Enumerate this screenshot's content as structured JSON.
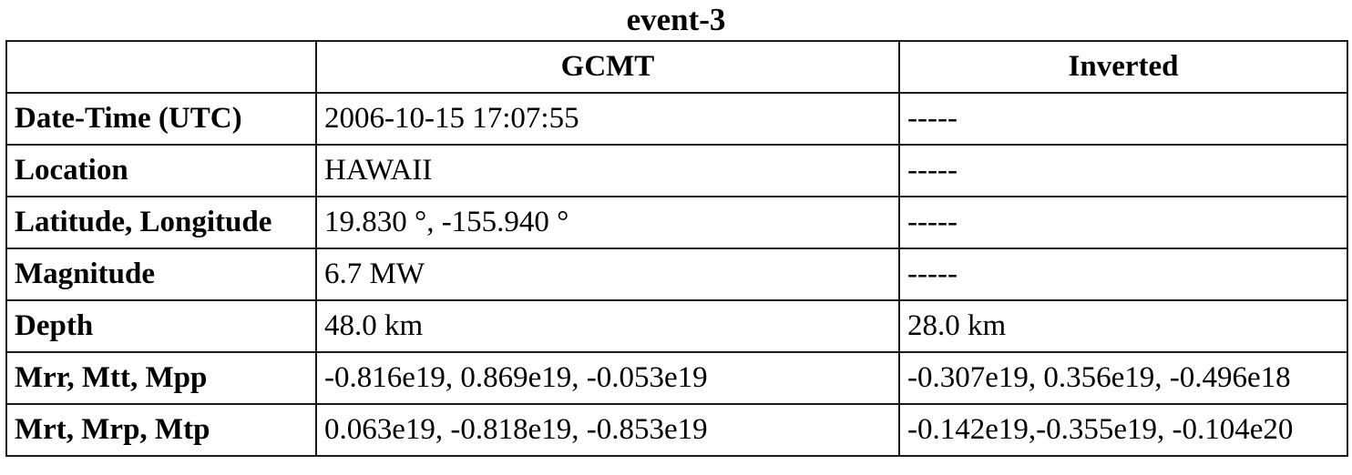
{
  "title": "event-3",
  "table": {
    "header": {
      "corner": "",
      "gcmt": "GCMT",
      "inverted": "Inverted"
    },
    "rows": [
      {
        "label": "Date-Time (UTC)",
        "gcmt": "2006-10-15 17:07:55",
        "inverted": "-----"
      },
      {
        "label": "Location",
        "gcmt": "HAWAII",
        "inverted": "-----"
      },
      {
        "label": "Latitude, Longitude",
        "gcmt": "19.830 °, -155.940 °",
        "inverted": "-----"
      },
      {
        "label": "Magnitude",
        "gcmt": "6.7 MW",
        "inverted": "-----"
      },
      {
        "label": "Depth",
        "gcmt": "48.0 km",
        "inverted": "28.0 km"
      },
      {
        "label": "Mrr, Mtt, Mpp",
        "gcmt": "-0.816e19, 0.869e19, -0.053e19",
        "inverted": "-0.307e19, 0.356e19, -0.496e18"
      },
      {
        "label": "Mrt, Mrp, Mtp",
        "gcmt": "0.063e19, -0.818e19, -0.853e19",
        "inverted": "-0.142e19,-0.355e19, -0.104e20"
      }
    ]
  }
}
